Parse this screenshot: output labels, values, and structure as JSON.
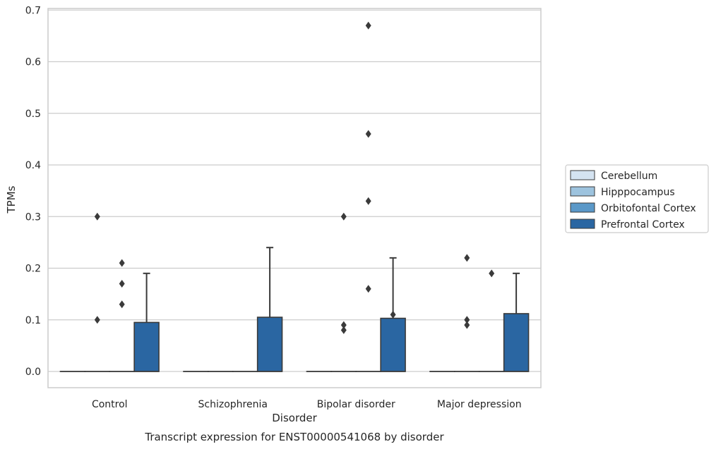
{
  "chart_data": {
    "type": "box",
    "title": "Transcript expression for ENST00000541068 by disorder",
    "xlabel": "Disorder",
    "ylabel": "TPMs",
    "ylim": [
      -0.03,
      0.705
    ],
    "yticks": [
      0.0,
      0.1,
      0.2,
      0.3,
      0.4,
      0.5,
      0.6,
      0.7
    ],
    "ytick_labels": [
      "0.0",
      "0.1",
      "0.2",
      "0.3",
      "0.4",
      "0.5",
      "0.6",
      "0.7"
    ],
    "grid": true,
    "legend_position": "outside-right",
    "categories": [
      "Control",
      "Schizophrenia",
      "Bipolar disorder",
      "Major depression"
    ],
    "series": [
      {
        "name": "Cerebellum",
        "color": "#d4e3f1",
        "boxes": [
          {
            "q1": 0,
            "median": 0,
            "q3": 0,
            "whisker_low": 0,
            "whisker_high": 0,
            "outliers": []
          },
          {
            "q1": 0,
            "median": 0,
            "q3": 0,
            "whisker_low": 0,
            "whisker_high": 0,
            "outliers": []
          },
          {
            "q1": 0,
            "median": 0,
            "q3": 0,
            "whisker_low": 0,
            "whisker_high": 0,
            "outliers": []
          },
          {
            "q1": 0,
            "median": 0,
            "q3": 0,
            "whisker_low": 0,
            "whisker_high": 0,
            "outliers": []
          }
        ]
      },
      {
        "name": "Hipppocampus",
        "color": "#9dc3de",
        "boxes": [
          {
            "q1": 0,
            "median": 0,
            "q3": 0,
            "whisker_low": 0,
            "whisker_high": 0,
            "outliers": [
              0.3,
              0.1
            ]
          },
          {
            "q1": 0,
            "median": 0,
            "q3": 0,
            "whisker_low": 0,
            "whisker_high": 0,
            "outliers": []
          },
          {
            "q1": 0,
            "median": 0,
            "q3": 0,
            "whisker_low": 0,
            "whisker_high": 0,
            "outliers": [
              0.3,
              0.09,
              0.08
            ]
          },
          {
            "q1": 0,
            "median": 0,
            "q3": 0,
            "whisker_low": 0,
            "whisker_high": 0,
            "outliers": [
              0.22,
              0.1,
              0.09
            ]
          }
        ]
      },
      {
        "name": "Orbitofontal Cortex",
        "color": "#5a98c8",
        "boxes": [
          {
            "q1": 0,
            "median": 0,
            "q3": 0,
            "whisker_low": 0,
            "whisker_high": 0,
            "outliers": [
              0.21,
              0.17,
              0.13
            ]
          },
          {
            "q1": 0,
            "median": 0,
            "q3": 0,
            "whisker_low": 0,
            "whisker_high": 0,
            "outliers": []
          },
          {
            "q1": 0,
            "median": 0,
            "q3": 0,
            "whisker_low": 0,
            "whisker_high": 0,
            "outliers": [
              0.67,
              0.46,
              0.33,
              0.16
            ]
          },
          {
            "q1": 0,
            "median": 0,
            "q3": 0,
            "whisker_low": 0,
            "whisker_high": 0,
            "outliers": [
              0.19
            ]
          }
        ]
      },
      {
        "name": "Prefrontal Cortex",
        "color": "#2a66a2",
        "boxes": [
          {
            "q1": 0,
            "median": 0,
            "q3": 0.095,
            "whisker_low": 0,
            "whisker_high": 0.19,
            "outliers": []
          },
          {
            "q1": 0,
            "median": 0,
            "q3": 0.105,
            "whisker_low": 0,
            "whisker_high": 0.24,
            "outliers": []
          },
          {
            "q1": 0,
            "median": 0,
            "q3": 0.103,
            "whisker_low": 0,
            "whisker_high": 0.22,
            "outliers": [
              0.11
            ]
          },
          {
            "q1": 0,
            "median": 0,
            "q3": 0.112,
            "whisker_low": 0,
            "whisker_high": 0.19,
            "outliers": []
          }
        ]
      }
    ],
    "style": {
      "grid_color": "#cccccc",
      "spine_color": "#cccccc",
      "line_color": "#3a3a3a"
    }
  }
}
